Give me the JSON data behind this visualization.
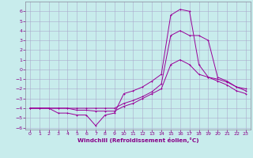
{
  "xlabel": "Windchill (Refroidissement éolien,°C)",
  "bg_color": "#c8ecec",
  "grid_color": "#aaaacc",
  "line_color": "#990099",
  "spine_color": "#888899",
  "xlim": [
    -0.5,
    23.5
  ],
  "ylim": [
    -6.2,
    7.0
  ],
  "xticks": [
    0,
    1,
    2,
    3,
    4,
    5,
    6,
    7,
    8,
    9,
    10,
    11,
    12,
    13,
    14,
    15,
    16,
    17,
    18,
    19,
    20,
    21,
    22,
    23
  ],
  "yticks": [
    -6,
    -5,
    -4,
    -3,
    -2,
    -1,
    0,
    1,
    2,
    3,
    4,
    5,
    6
  ],
  "tick_fontsize": 4.5,
  "xlabel_fontsize": 5.2,
  "series1_x": [
    0,
    1,
    2,
    3,
    4,
    5,
    6,
    7,
    8,
    9,
    10,
    11,
    12,
    13,
    14,
    15,
    16,
    17,
    18,
    19,
    20,
    21,
    22,
    23
  ],
  "series1_y": [
    -4.0,
    -4.0,
    -4.0,
    -4.5,
    -4.5,
    -4.7,
    -4.7,
    -5.8,
    -4.7,
    -4.5,
    -2.5,
    -2.2,
    -1.8,
    -1.2,
    -0.5,
    5.6,
    6.2,
    6.0,
    0.5,
    -0.8,
    -1.2,
    -1.6,
    -2.2,
    -2.5
  ],
  "series2_x": [
    0,
    1,
    2,
    3,
    4,
    5,
    6,
    7,
    8,
    9,
    10,
    11,
    12,
    13,
    14,
    15,
    16,
    17,
    18,
    19,
    20,
    21,
    22,
    23
  ],
  "series2_y": [
    -4.0,
    -4.0,
    -4.0,
    -4.0,
    -4.0,
    -4.2,
    -4.2,
    -4.3,
    -4.3,
    -4.3,
    -3.8,
    -3.5,
    -3.0,
    -2.5,
    -2.0,
    0.5,
    1.0,
    0.5,
    -0.5,
    -0.8,
    -1.0,
    -1.3,
    -1.8,
    -2.2
  ],
  "series3_x": [
    0,
    1,
    2,
    3,
    4,
    5,
    6,
    7,
    8,
    9,
    10,
    11,
    12,
    13,
    14,
    15,
    16,
    17,
    18,
    19,
    20,
    21,
    22,
    23
  ],
  "series3_y": [
    -4.0,
    -4.0,
    -4.0,
    -4.0,
    -4.0,
    -4.0,
    -4.0,
    -4.0,
    -4.0,
    -4.0,
    -3.5,
    -3.2,
    -2.8,
    -2.3,
    -1.5,
    3.5,
    4.0,
    3.5,
    3.5,
    3.0,
    -0.8,
    -1.2,
    -1.8,
    -2.0
  ]
}
